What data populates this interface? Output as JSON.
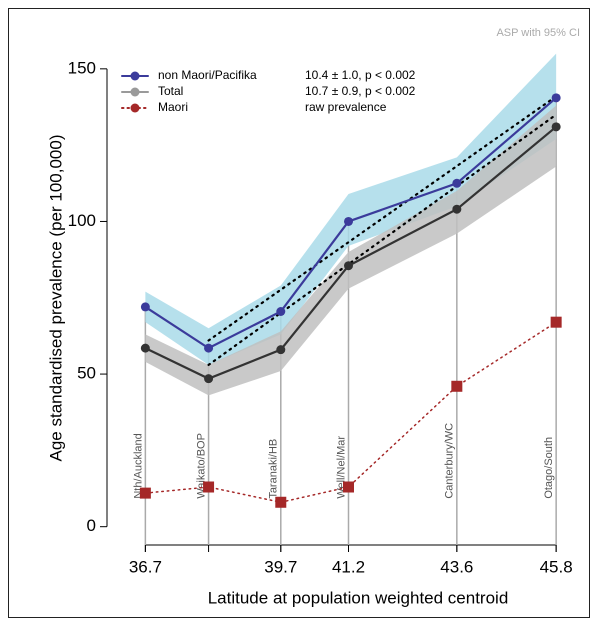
{
  "chart_data": {
    "type": "line",
    "note": "ASP with 95% CI",
    "xlabel": "Latitude at population weighted centroid",
    "ylabel": "Age standardised prevalence (per 100,000)",
    "x": [
      36.7,
      38.1,
      39.7,
      41.2,
      43.6,
      45.8
    ],
    "regions": [
      "Nth/Auckland",
      "Waikato/BOP",
      "Taranaki/HB",
      "Well/Nel/Mar",
      "Canterbury/WC",
      "Otago/South"
    ],
    "xlim": [
      35.85,
      46.55
    ],
    "xticks": [
      36.7,
      39.7,
      41.2,
      43.6,
      45.8
    ],
    "ylim": [
      -6,
      166
    ],
    "yticks": [
      0,
      50,
      100,
      150
    ],
    "series": [
      {
        "name": "non Maori/Pacifika",
        "stat": "10.4 ± 1.0, p < 0.002",
        "color": "#3b3b9b",
        "marker": "#3b3b9b",
        "band_color": "#a9dbe9",
        "style": "solid",
        "values": [
          72,
          58.5,
          70.5,
          100,
          112.5,
          140.5
        ],
        "upper": [
          77,
          65,
          79,
          109,
          121,
          155
        ],
        "lower": [
          67,
          53,
          63,
          92,
          105,
          127
        ]
      },
      {
        "name": "Total",
        "stat": "10.7 ± 0.9, p < 0.002",
        "color": "#333333",
        "marker": "#9a9a9a",
        "band_color": "#bfbfbf",
        "style": "solid",
        "values": [
          58.5,
          48.5,
          58,
          85.5,
          104,
          131
        ],
        "upper": [
          63,
          53,
          64,
          90,
          110,
          138
        ],
        "lower": [
          54,
          43,
          51,
          78,
          96,
          118
        ]
      },
      {
        "name": "Maori",
        "stat": "raw prevalence",
        "color": "#a52828",
        "marker": "#a52828",
        "style": "dotted",
        "values": [
          11,
          13,
          8,
          13,
          46,
          67
        ]
      }
    ],
    "trends": [
      {
        "x": [
          38.1,
          45.8
        ],
        "values": [
          61,
          141
        ]
      },
      {
        "x": [
          38.1,
          45.8
        ],
        "values": [
          53,
          135
        ]
      }
    ]
  }
}
